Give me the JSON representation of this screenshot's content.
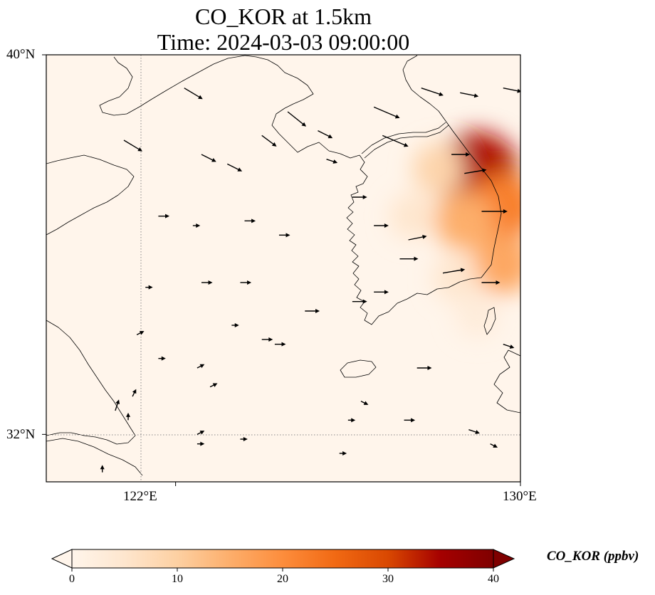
{
  "title": {
    "line1": "CO_KOR at 1.5km",
    "line2": "Time: 2024-03-03 09:00:00"
  },
  "map": {
    "lon_range": [
      119,
      130
    ],
    "lat_range": [
      31,
      40
    ],
    "lat_ticks": [
      {
        "value": 40,
        "label": "40°N"
      },
      {
        "value": 32,
        "label": "32°N"
      }
    ],
    "lon_ticks": [
      {
        "value": 122,
        "label": "122°E"
      },
      {
        "value": 130,
        "label": "130°E"
      }
    ],
    "gridlines": {
      "lon": [
        122
      ],
      "lat": [
        32
      ],
      "style": "dotted"
    },
    "background_color": "#fff5eb"
  },
  "colorbar": {
    "label": "CO_KOR (ppbv)",
    "range": [
      0,
      40
    ],
    "ticks": [
      0,
      10,
      20,
      30,
      40
    ],
    "extend": "both",
    "colormap": [
      "#fff5eb",
      "#fee6ce",
      "#fdd0a2",
      "#fdae6b",
      "#fd8d3c",
      "#f16913",
      "#d94801",
      "#a50000",
      "#7f0000"
    ]
  },
  "chart_data": {
    "type": "heatmap",
    "variable": "CO_KOR",
    "units": "ppbv",
    "level": "1.5km",
    "time": "2024-03-03 09:00:00",
    "lon_range": [
      119,
      130
    ],
    "lat_range": [
      31,
      40
    ],
    "hotspots": [
      {
        "lon": 129.0,
        "lat": 37.5,
        "value": 34
      },
      {
        "lon": 129.6,
        "lat": 36.8,
        "value": 22
      },
      {
        "lon": 128.7,
        "lat": 36.5,
        "value": 15
      },
      {
        "lon": 129.6,
        "lat": 35.6,
        "value": 16
      },
      {
        "lon": 128.1,
        "lat": 37.6,
        "value": 9
      },
      {
        "lon": 127.5,
        "lat": 36.6,
        "value": 5
      },
      {
        "lon": 128.5,
        "lat": 35.3,
        "value": 5
      },
      {
        "lon": 129.0,
        "lat": 34.5,
        "value": 3
      }
    ],
    "wind_vectors": [
      {
        "lon": 120.8,
        "lat": 38.2,
        "u": 5,
        "v": -3
      },
      {
        "lon": 122.2,
        "lat": 39.3,
        "u": 5,
        "v": -3
      },
      {
        "lon": 122.6,
        "lat": 37.9,
        "u": 4,
        "v": -2
      },
      {
        "lon": 123.2,
        "lat": 37.7,
        "u": 4,
        "v": -2
      },
      {
        "lon": 124.0,
        "lat": 38.3,
        "u": 4,
        "v": -3
      },
      {
        "lon": 124.6,
        "lat": 38.8,
        "u": 5,
        "v": -4
      },
      {
        "lon": 125.3,
        "lat": 38.4,
        "u": 4,
        "v": -2
      },
      {
        "lon": 125.5,
        "lat": 37.8,
        "u": 3,
        "v": -1
      },
      {
        "lon": 126.1,
        "lat": 37.0,
        "u": 4,
        "v": 0
      },
      {
        "lon": 126.6,
        "lat": 38.9,
        "u": 7,
        "v": -3
      },
      {
        "lon": 126.8,
        "lat": 38.3,
        "u": 7,
        "v": -3
      },
      {
        "lon": 127.7,
        "lat": 39.3,
        "u": 6,
        "v": -2
      },
      {
        "lon": 128.6,
        "lat": 39.2,
        "u": 5,
        "v": -1
      },
      {
        "lon": 129.6,
        "lat": 39.3,
        "u": 5,
        "v": -1
      },
      {
        "lon": 128.4,
        "lat": 37.9,
        "u": 5,
        "v": 0
      },
      {
        "lon": 128.7,
        "lat": 37.5,
        "u": 6,
        "v": 1
      },
      {
        "lon": 129.1,
        "lat": 36.7,
        "u": 7,
        "v": 0
      },
      {
        "lon": 127.4,
        "lat": 36.1,
        "u": 5,
        "v": 1
      },
      {
        "lon": 126.6,
        "lat": 36.4,
        "u": 4,
        "v": 0
      },
      {
        "lon": 127.2,
        "lat": 35.7,
        "u": 5,
        "v": 0
      },
      {
        "lon": 128.2,
        "lat": 35.4,
        "u": 6,
        "v": 1
      },
      {
        "lon": 129.1,
        "lat": 35.2,
        "u": 5,
        "v": 0
      },
      {
        "lon": 126.6,
        "lat": 35.0,
        "u": 4,
        "v": 0
      },
      {
        "lon": 126.1,
        "lat": 34.8,
        "u": 4,
        "v": 0
      },
      {
        "lon": 125.0,
        "lat": 34.6,
        "u": 4,
        "v": 0
      },
      {
        "lon": 124.4,
        "lat": 36.2,
        "u": 3,
        "v": 0
      },
      {
        "lon": 123.6,
        "lat": 36.5,
        "u": 3,
        "v": 0
      },
      {
        "lon": 122.6,
        "lat": 35.2,
        "u": 3,
        "v": 0
      },
      {
        "lon": 123.5,
        "lat": 35.2,
        "u": 3,
        "v": 0
      },
      {
        "lon": 124.0,
        "lat": 34.0,
        "u": 3,
        "v": 0
      },
      {
        "lon": 124.3,
        "lat": 33.9,
        "u": 3,
        "v": 0
      },
      {
        "lon": 121.1,
        "lat": 34.1,
        "u": 2,
        "v": 1
      },
      {
        "lon": 121.3,
        "lat": 35.1,
        "u": 2,
        "v": 0
      },
      {
        "lon": 121.6,
        "lat": 33.6,
        "u": 2,
        "v": 0
      },
      {
        "lon": 122.4,
        "lat": 36.4,
        "u": 2,
        "v": 0
      },
      {
        "lon": 121.6,
        "lat": 36.6,
        "u": 3,
        "v": 0
      },
      {
        "lon": 127.6,
        "lat": 33.4,
        "u": 4,
        "v": 0
      },
      {
        "lon": 127.3,
        "lat": 32.3,
        "u": 3,
        "v": 0
      },
      {
        "lon": 128.8,
        "lat": 32.1,
        "u": 3,
        "v": -1
      },
      {
        "lon": 129.6,
        "lat": 33.9,
        "u": 3,
        "v": -1
      },
      {
        "lon": 129.3,
        "lat": 31.8,
        "u": 2,
        "v": -1
      },
      {
        "lon": 126.3,
        "lat": 32.7,
        "u": 2,
        "v": -1
      },
      {
        "lon": 126.0,
        "lat": 32.3,
        "u": 2,
        "v": 0
      },
      {
        "lon": 125.8,
        "lat": 31.6,
        "u": 2,
        "v": 0
      },
      {
        "lon": 123.5,
        "lat": 31.9,
        "u": 2,
        "v": 0
      },
      {
        "lon": 122.5,
        "lat": 31.8,
        "u": 2,
        "v": 0
      },
      {
        "lon": 120.9,
        "lat": 32.3,
        "u": 0,
        "v": 2
      },
      {
        "lon": 120.3,
        "lat": 31.2,
        "u": 0,
        "v": 2
      },
      {
        "lon": 121.0,
        "lat": 32.8,
        "u": 1,
        "v": 2
      },
      {
        "lon": 120.6,
        "lat": 32.5,
        "u": 1,
        "v": 3
      },
      {
        "lon": 122.5,
        "lat": 32.0,
        "u": 2,
        "v": 1
      },
      {
        "lon": 123.3,
        "lat": 34.3,
        "u": 2,
        "v": 0
      },
      {
        "lon": 122.8,
        "lat": 33.0,
        "u": 2,
        "v": 1
      },
      {
        "lon": 122.5,
        "lat": 33.4,
        "u": 2,
        "v": 1
      }
    ]
  }
}
